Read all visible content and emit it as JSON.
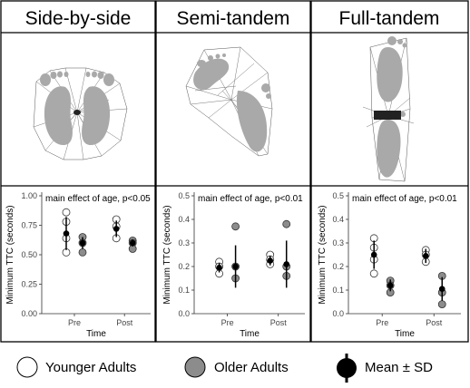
{
  "columns": [
    {
      "title": "Side-by-side"
    },
    {
      "title": "Semi-tandem"
    },
    {
      "title": "Full-tandem"
    }
  ],
  "legend": {
    "younger": "Younger Adults",
    "older": "Older Adults",
    "mean": "Mean ± SD"
  },
  "colors": {
    "younger_fill": "#ffffff",
    "older_fill": "#8c8c8c",
    "mean_fill": "#000000",
    "foot_fill": "#a9a9a9",
    "frame": "#000000"
  },
  "chart_data": [
    {
      "type": "scatter",
      "annotation": "main effect of age, p<0.05",
      "xlabel": "Time",
      "ylabel": "Minimum TTC (seconds)",
      "categories": [
        "Pre",
        "Post"
      ],
      "ylim": [
        0,
        1.0
      ],
      "yticks": [
        "0.00",
        "0.25",
        "0.50",
        "0.75",
        "1.00"
      ],
      "series": [
        {
          "name": "Younger Adults",
          "points": {
            "Pre": [
              0.86,
              0.78,
              0.64,
              0.52
            ],
            "Post": [
              0.8,
              0.74,
              0.64
            ]
          },
          "mean": {
            "Pre": 0.68,
            "Post": 0.72
          },
          "sd": {
            "Pre": 0.14,
            "Post": 0.07
          }
        },
        {
          "name": "Older Adults",
          "points": {
            "Pre": [
              0.65,
              0.6,
              0.52
            ],
            "Post": [
              0.62,
              0.6,
              0.55
            ]
          },
          "mean": {
            "Pre": 0.6,
            "Post": 0.6
          },
          "sd": {
            "Pre": 0.05,
            "Post": 0.03
          }
        }
      ]
    },
    {
      "type": "scatter",
      "annotation": "main effect of age, p<0.01",
      "xlabel": "Time",
      "ylabel": "Minimum TTC (seconds)",
      "categories": [
        "Pre",
        "Post"
      ],
      "ylim": [
        0,
        0.5
      ],
      "yticks": [
        "0.0",
        "0.1",
        "0.2",
        "0.3",
        "0.4",
        "0.5"
      ],
      "series": [
        {
          "name": "Younger Adults",
          "points": {
            "Pre": [
              0.22,
              0.2,
              0.17
            ],
            "Post": [
              0.25,
              0.23,
              0.21
            ]
          },
          "mean": {
            "Pre": 0.195,
            "Post": 0.225
          },
          "sd": {
            "Pre": 0.02,
            "Post": 0.02
          }
        },
        {
          "name": "Older Adults",
          "points": {
            "Pre": [
              0.37,
              0.2,
              0.15
            ],
            "Post": [
              0.38,
              0.2,
              0.16
            ]
          },
          "mean": {
            "Pre": 0.2,
            "Post": 0.21
          },
          "sd": {
            "Pre": 0.09,
            "Post": 0.1
          }
        }
      ]
    },
    {
      "type": "scatter",
      "annotation": "main effect of age, p<0.01",
      "xlabel": "Time",
      "ylabel": "Minimum TTC (seconds)",
      "categories": [
        "Pre",
        "Post"
      ],
      "ylim": [
        0,
        0.5
      ],
      "yticks": [
        "0.0",
        "0.1",
        "0.2",
        "0.3",
        "0.4",
        "0.5"
      ],
      "series": [
        {
          "name": "Younger Adults",
          "points": {
            "Pre": [
              0.32,
              0.28,
              0.23,
              0.17
            ],
            "Post": [
              0.27,
              0.25,
              0.22
            ]
          },
          "mean": {
            "Pre": 0.25,
            "Post": 0.245
          },
          "sd": {
            "Pre": 0.06,
            "Post": 0.03
          }
        },
        {
          "name": "Older Adults",
          "points": {
            "Pre": [
              0.14,
              0.12,
              0.09
            ],
            "Post": [
              0.16,
              0.09,
              0.04
            ]
          },
          "mean": {
            "Pre": 0.12,
            "Post": 0.105
          },
          "sd": {
            "Pre": 0.025,
            "Post": 0.05
          }
        }
      ]
    }
  ]
}
